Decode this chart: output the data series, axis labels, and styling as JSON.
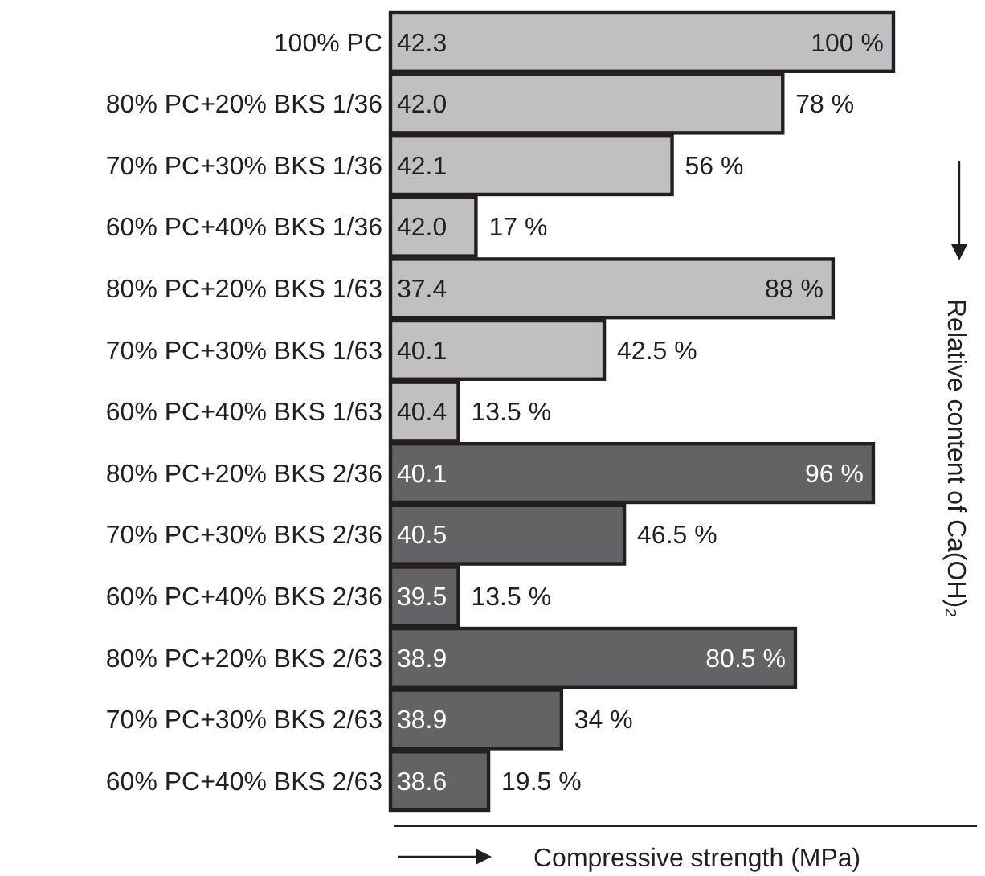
{
  "chart_data": {
    "type": "bar",
    "orientation": "horizontal",
    "xlabel": "Compressive strength (MPa)",
    "ylabel": "Relative content of Ca(OH)₂",
    "categories": [
      "100% PC",
      "80% PC+20% BKS 1/36",
      "70% PC+30% BKS 1/36",
      "60% PC+40% BKS 1/36",
      "80% PC+20% BKS 1/63",
      "70% PC+30% BKS 1/63",
      "60% PC+40% BKS 1/63",
      "80% PC+20% BKS 2/36",
      "70% PC+30% BKS 2/36",
      "60% PC+40% BKS 2/36",
      "80% PC+20% BKS 2/63",
      "70% PC+30% BKS 2/63",
      "60% PC+40% BKS 2/63"
    ],
    "values": [
      100,
      78,
      56,
      17,
      88,
      42.5,
      13.5,
      96,
      46.5,
      13.5,
      80.5,
      34,
      19.5
    ],
    "value_labels": [
      "100 %",
      "78 %",
      "56 %",
      "17 %",
      "88 %",
      "42.5 %",
      "13.5 %",
      "96 %",
      "46.5 %",
      "13.5 %",
      "80.5 %",
      "34 %",
      "19.5 %"
    ],
    "colors": [
      "#c0c0c2",
      "#c0c0c2",
      "#c0c0c2",
      "#c0c0c2",
      "#c0c0c2",
      "#c0c0c2",
      "#c0c0c2",
      "#636366",
      "#636366",
      "#636366",
      "#636366",
      "#636366",
      "#636366"
    ],
    "annotations": [
      "42.3",
      "42.0",
      "42.1",
      "42.0",
      "37.4",
      "40.1",
      "40.4",
      "40.1",
      "40.5",
      "39.5",
      "38.9",
      "38.9",
      "38.6"
    ]
  }
}
